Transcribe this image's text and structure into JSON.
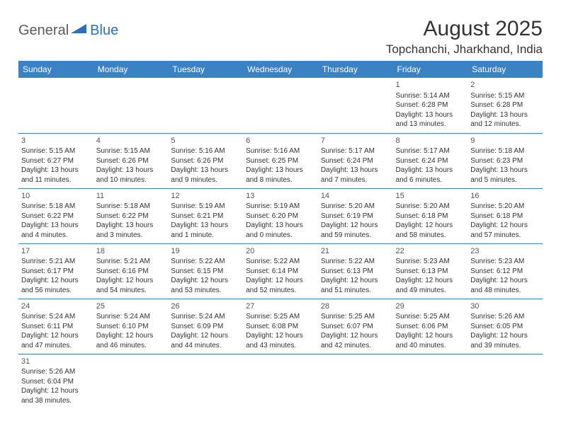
{
  "logo": {
    "text_general": "General",
    "text_blue": "Blue",
    "triangle_color": "#2a70b8"
  },
  "title": "August 2025",
  "location": "Topchanchi, Jharkhand, India",
  "colors": {
    "header_bg": "#3a82c4",
    "header_text": "#ffffff",
    "border": "#3a82c4",
    "body_text": "#333333"
  },
  "day_headers": [
    "Sunday",
    "Monday",
    "Tuesday",
    "Wednesday",
    "Thursday",
    "Friday",
    "Saturday"
  ],
  "weeks": [
    [
      null,
      null,
      null,
      null,
      null,
      {
        "n": "1",
        "sr": "Sunrise: 5:14 AM",
        "ss": "Sunset: 6:28 PM",
        "dl1": "Daylight: 13 hours",
        "dl2": "and 13 minutes."
      },
      {
        "n": "2",
        "sr": "Sunrise: 5:15 AM",
        "ss": "Sunset: 6:28 PM",
        "dl1": "Daylight: 13 hours",
        "dl2": "and 12 minutes."
      }
    ],
    [
      {
        "n": "3",
        "sr": "Sunrise: 5:15 AM",
        "ss": "Sunset: 6:27 PM",
        "dl1": "Daylight: 13 hours",
        "dl2": "and 11 minutes."
      },
      {
        "n": "4",
        "sr": "Sunrise: 5:15 AM",
        "ss": "Sunset: 6:26 PM",
        "dl1": "Daylight: 13 hours",
        "dl2": "and 10 minutes."
      },
      {
        "n": "5",
        "sr": "Sunrise: 5:16 AM",
        "ss": "Sunset: 6:26 PM",
        "dl1": "Daylight: 13 hours",
        "dl2": "and 9 minutes."
      },
      {
        "n": "6",
        "sr": "Sunrise: 5:16 AM",
        "ss": "Sunset: 6:25 PM",
        "dl1": "Daylight: 13 hours",
        "dl2": "and 8 minutes."
      },
      {
        "n": "7",
        "sr": "Sunrise: 5:17 AM",
        "ss": "Sunset: 6:24 PM",
        "dl1": "Daylight: 13 hours",
        "dl2": "and 7 minutes."
      },
      {
        "n": "8",
        "sr": "Sunrise: 5:17 AM",
        "ss": "Sunset: 6:24 PM",
        "dl1": "Daylight: 13 hours",
        "dl2": "and 6 minutes."
      },
      {
        "n": "9",
        "sr": "Sunrise: 5:18 AM",
        "ss": "Sunset: 6:23 PM",
        "dl1": "Daylight: 13 hours",
        "dl2": "and 5 minutes."
      }
    ],
    [
      {
        "n": "10",
        "sr": "Sunrise: 5:18 AM",
        "ss": "Sunset: 6:22 PM",
        "dl1": "Daylight: 13 hours",
        "dl2": "and 4 minutes."
      },
      {
        "n": "11",
        "sr": "Sunrise: 5:18 AM",
        "ss": "Sunset: 6:22 PM",
        "dl1": "Daylight: 13 hours",
        "dl2": "and 3 minutes."
      },
      {
        "n": "12",
        "sr": "Sunrise: 5:19 AM",
        "ss": "Sunset: 6:21 PM",
        "dl1": "Daylight: 13 hours",
        "dl2": "and 1 minute."
      },
      {
        "n": "13",
        "sr": "Sunrise: 5:19 AM",
        "ss": "Sunset: 6:20 PM",
        "dl1": "Daylight: 13 hours",
        "dl2": "and 0 minutes."
      },
      {
        "n": "14",
        "sr": "Sunrise: 5:20 AM",
        "ss": "Sunset: 6:19 PM",
        "dl1": "Daylight: 12 hours",
        "dl2": "and 59 minutes."
      },
      {
        "n": "15",
        "sr": "Sunrise: 5:20 AM",
        "ss": "Sunset: 6:18 PM",
        "dl1": "Daylight: 12 hours",
        "dl2": "and 58 minutes."
      },
      {
        "n": "16",
        "sr": "Sunrise: 5:20 AM",
        "ss": "Sunset: 6:18 PM",
        "dl1": "Daylight: 12 hours",
        "dl2": "and 57 minutes."
      }
    ],
    [
      {
        "n": "17",
        "sr": "Sunrise: 5:21 AM",
        "ss": "Sunset: 6:17 PM",
        "dl1": "Daylight: 12 hours",
        "dl2": "and 56 minutes."
      },
      {
        "n": "18",
        "sr": "Sunrise: 5:21 AM",
        "ss": "Sunset: 6:16 PM",
        "dl1": "Daylight: 12 hours",
        "dl2": "and 54 minutes."
      },
      {
        "n": "19",
        "sr": "Sunrise: 5:22 AM",
        "ss": "Sunset: 6:15 PM",
        "dl1": "Daylight: 12 hours",
        "dl2": "and 53 minutes."
      },
      {
        "n": "20",
        "sr": "Sunrise: 5:22 AM",
        "ss": "Sunset: 6:14 PM",
        "dl1": "Daylight: 12 hours",
        "dl2": "and 52 minutes."
      },
      {
        "n": "21",
        "sr": "Sunrise: 5:22 AM",
        "ss": "Sunset: 6:13 PM",
        "dl1": "Daylight: 12 hours",
        "dl2": "and 51 minutes."
      },
      {
        "n": "22",
        "sr": "Sunrise: 5:23 AM",
        "ss": "Sunset: 6:13 PM",
        "dl1": "Daylight: 12 hours",
        "dl2": "and 49 minutes."
      },
      {
        "n": "23",
        "sr": "Sunrise: 5:23 AM",
        "ss": "Sunset: 6:12 PM",
        "dl1": "Daylight: 12 hours",
        "dl2": "and 48 minutes."
      }
    ],
    [
      {
        "n": "24",
        "sr": "Sunrise: 5:24 AM",
        "ss": "Sunset: 6:11 PM",
        "dl1": "Daylight: 12 hours",
        "dl2": "and 47 minutes."
      },
      {
        "n": "25",
        "sr": "Sunrise: 5:24 AM",
        "ss": "Sunset: 6:10 PM",
        "dl1": "Daylight: 12 hours",
        "dl2": "and 46 minutes."
      },
      {
        "n": "26",
        "sr": "Sunrise: 5:24 AM",
        "ss": "Sunset: 6:09 PM",
        "dl1": "Daylight: 12 hours",
        "dl2": "and 44 minutes."
      },
      {
        "n": "27",
        "sr": "Sunrise: 5:25 AM",
        "ss": "Sunset: 6:08 PM",
        "dl1": "Daylight: 12 hours",
        "dl2": "and 43 minutes."
      },
      {
        "n": "28",
        "sr": "Sunrise: 5:25 AM",
        "ss": "Sunset: 6:07 PM",
        "dl1": "Daylight: 12 hours",
        "dl2": "and 42 minutes."
      },
      {
        "n": "29",
        "sr": "Sunrise: 5:25 AM",
        "ss": "Sunset: 6:06 PM",
        "dl1": "Daylight: 12 hours",
        "dl2": "and 40 minutes."
      },
      {
        "n": "30",
        "sr": "Sunrise: 5:26 AM",
        "ss": "Sunset: 6:05 PM",
        "dl1": "Daylight: 12 hours",
        "dl2": "and 39 minutes."
      }
    ],
    [
      {
        "n": "31",
        "sr": "Sunrise: 5:26 AM",
        "ss": "Sunset: 6:04 PM",
        "dl1": "Daylight: 12 hours",
        "dl2": "and 38 minutes."
      },
      null,
      null,
      null,
      null,
      null,
      null
    ]
  ]
}
